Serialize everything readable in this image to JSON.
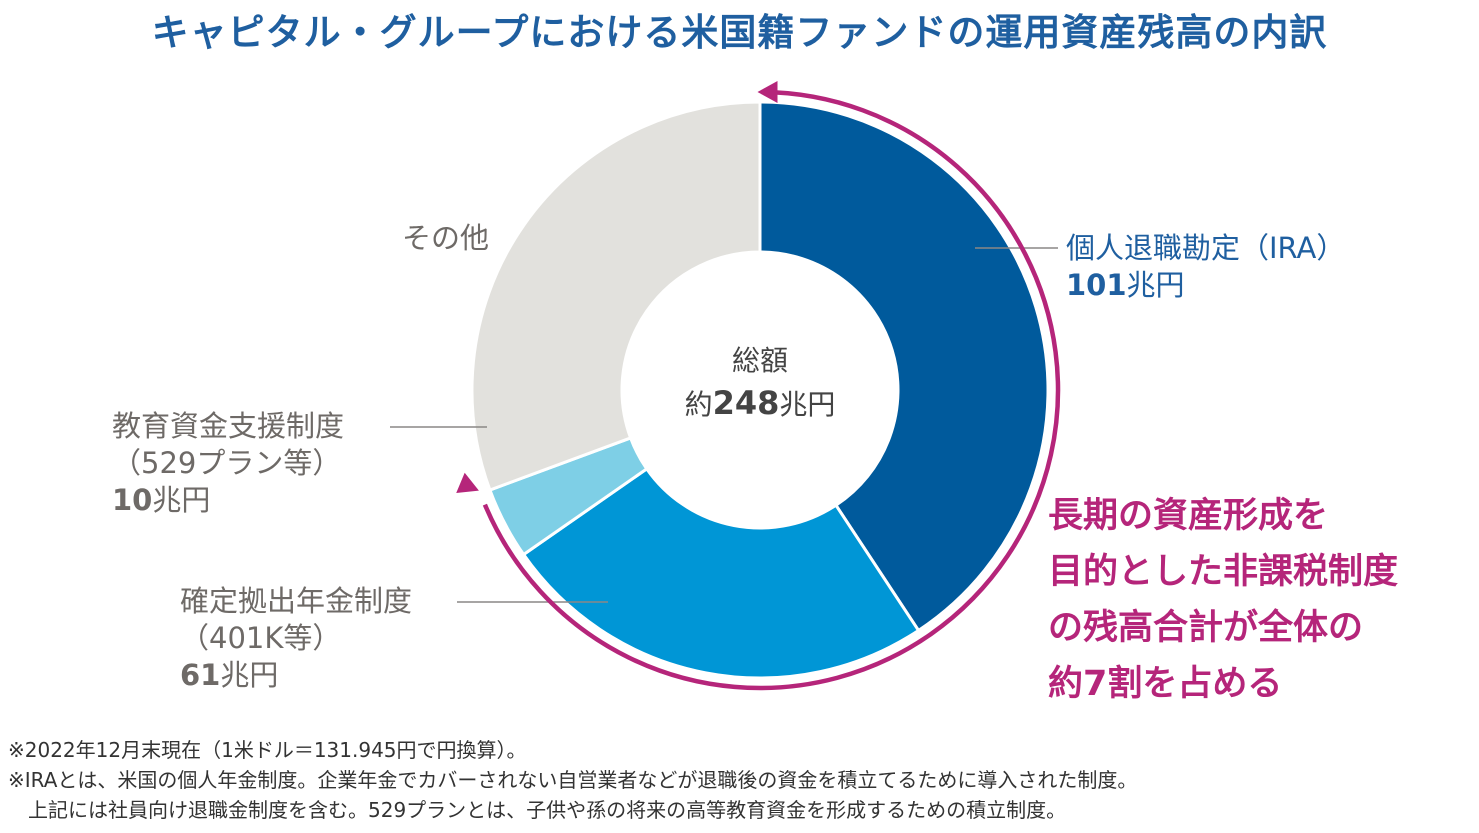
{
  "title": "キャピタル・グループにおける米国籍ファンドの運用資産残高の内訳",
  "center": {
    "label": "総額",
    "prefix": "約",
    "value": "248",
    "unit": "兆円"
  },
  "labels": {
    "ira": {
      "name": "個人退職勘定（IRA）",
      "value": "101",
      "unit": "兆円"
    },
    "other": {
      "name": "その他"
    },
    "edu": {
      "name": "教育資金支援制度",
      "sub": "（529プラン等）",
      "value": "10",
      "unit": "兆円"
    },
    "dc": {
      "name": "確定拠出年金制度",
      "sub": "（401K等）",
      "value": "61",
      "unit": "兆円"
    }
  },
  "callout": "長期の資産形成を\n目的とした非課税制度\nの残高合計が全体の\n約7割を占める",
  "notes": "※2022年12月末現在（1米ドル＝131.945円で円換算）。\n※IRAとは、米国の個人年金制度。企業年金でカバーされない自営業者などが退職後の資金を積立てるために導入された制度。\n　上記には社員向け退職金制度を含む。529プランとは、子供や孫の将来の高等教育資金を形成するための積立制度。",
  "colors": {
    "ira": "#005a9c",
    "dc": "#0096d6",
    "edu": "#7ecfe6",
    "other": "#e2e1dd",
    "accent": "#b5257a",
    "title": "#1f5fa0"
  },
  "chart_data": {
    "type": "pie",
    "donut": true,
    "total": 248,
    "unit": "兆円",
    "slices": [
      {
        "name": "個人退職勘定（IRA）",
        "value": 101,
        "color": "#005a9c"
      },
      {
        "name": "確定拠出年金制度（401K等）",
        "value": 61,
        "color": "#0096d6"
      },
      {
        "name": "教育資金支援制度（529プラン等）",
        "value": 10,
        "color": "#7ecfe6"
      },
      {
        "name": "その他",
        "value": 76,
        "color": "#e2e1dd"
      }
    ]
  }
}
